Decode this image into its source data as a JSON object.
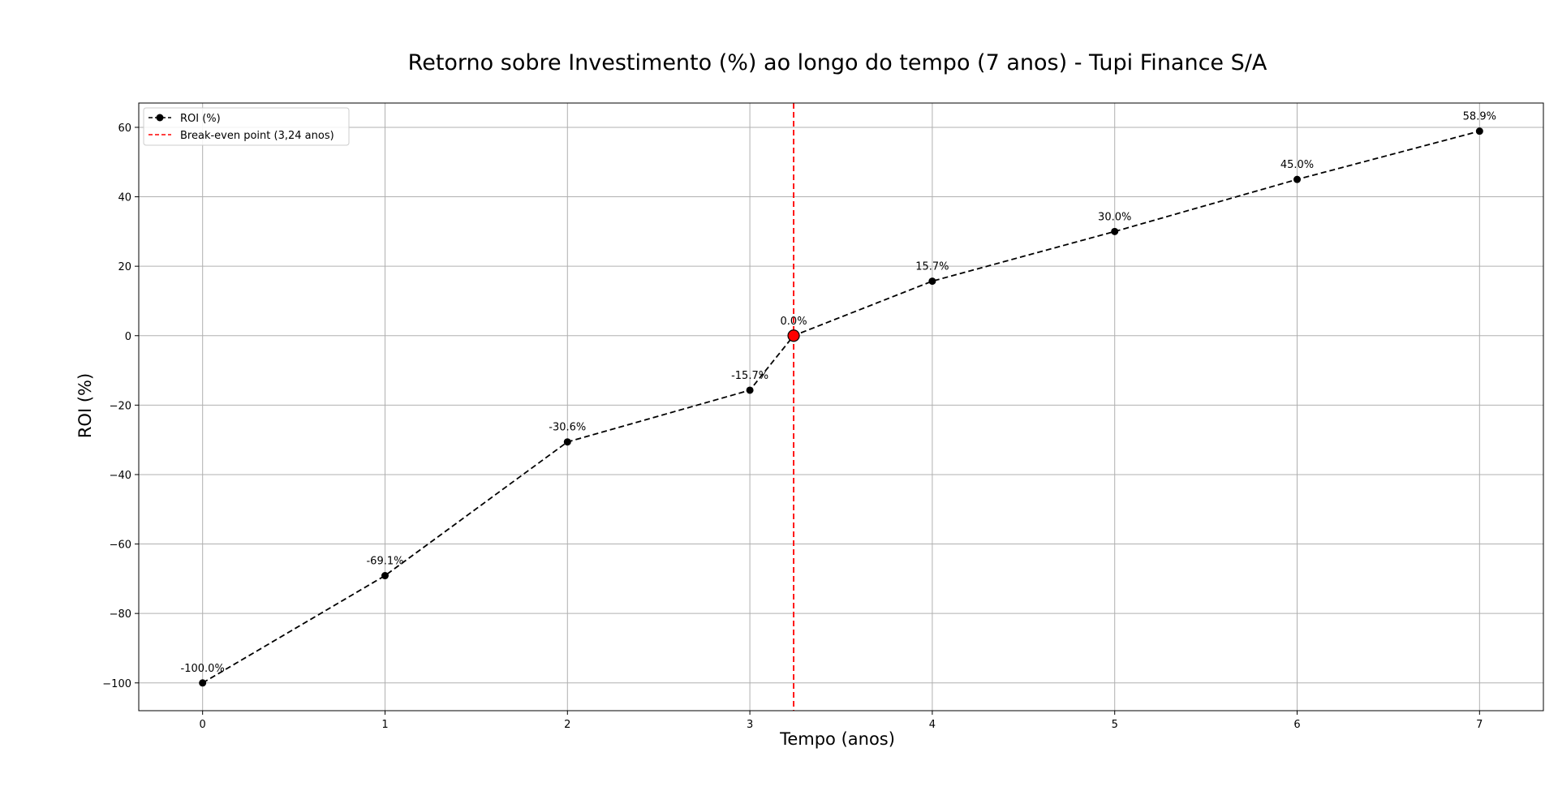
{
  "chart_data": {
    "type": "line",
    "title": "Retorno sobre Investimento (%) ao longo do tempo (7 anos) - Tupi Finance S/A",
    "xlabel": "Tempo (anos)",
    "ylabel": "ROI (%)",
    "xlim": [
      -0.35,
      7.35
    ],
    "ylim": [
      -108,
      67
    ],
    "x_ticks": [
      0,
      1,
      2,
      3,
      4,
      5,
      6,
      7
    ],
    "y_ticks": [
      -100,
      -80,
      -60,
      -40,
      -20,
      0,
      20,
      40,
      60
    ],
    "grid": true,
    "legend_position": "upper-left",
    "series": [
      {
        "name": "ROI (%)",
        "color": "#000000",
        "line_style": "dashed",
        "marker": "circle",
        "x": [
          0,
          1,
          2,
          3,
          3.24,
          4,
          5,
          6,
          7
        ],
        "y": [
          -100,
          -69.1,
          -30.6,
          -15.7,
          0,
          15.7,
          30.0,
          45.0,
          58.9
        ],
        "labels": [
          "-100.0%",
          "-69.1%",
          "-30.6%",
          "-15.7%",
          "0.0%",
          "15.7%",
          "30.0%",
          "45.0%",
          "58.9%"
        ]
      }
    ],
    "break_even": {
      "name": "Break-even point (3,24 anos)",
      "x": 3.24,
      "y": 0,
      "color": "#ff0000",
      "line_style": "dashed"
    }
  }
}
